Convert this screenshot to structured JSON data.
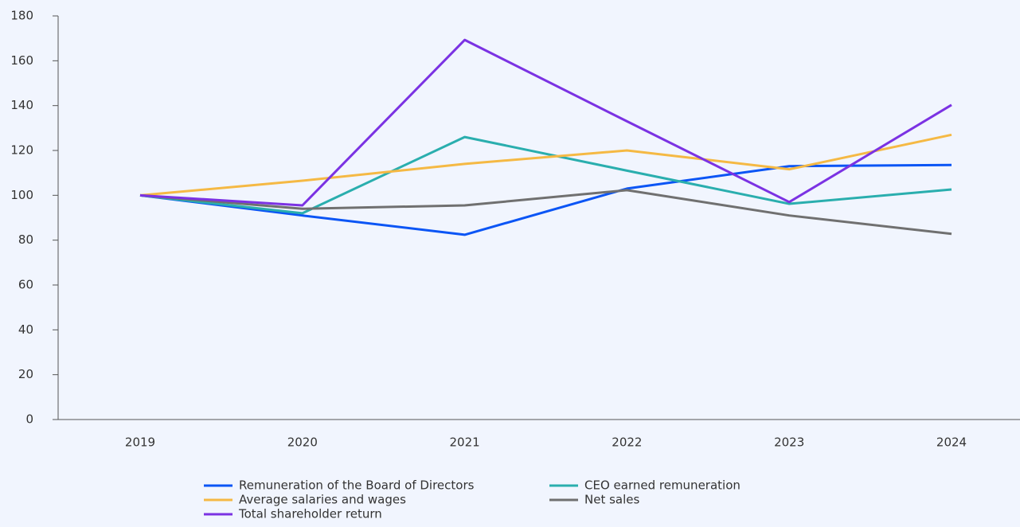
{
  "chart_data": {
    "type": "line",
    "categories": [
      "2019",
      "2020",
      "2021",
      "2022",
      "2023",
      "2024"
    ],
    "series": [
      {
        "name": "Remuneration of the Board of Directors",
        "color": "#0b55f5",
        "values": [
          100,
          91,
          82.4,
          103,
          113,
          113.5
        ]
      },
      {
        "name": "CEO earned remuneration",
        "color": "#2aaeae",
        "values": [
          100,
          92,
          126,
          111,
          96.2,
          102.6
        ]
      },
      {
        "name": "Average salaries and wages",
        "color": "#f5b944",
        "values": [
          100,
          106.5,
          114,
          120,
          111.6,
          127
        ]
      },
      {
        "name": "Net sales",
        "color": "#707070",
        "values": [
          100,
          94,
          95.5,
          102.3,
          91,
          82.8
        ]
      },
      {
        "name": "Total shareholder return",
        "color": "#7b32e3",
        "values": [
          100,
          95.5,
          169.3,
          133,
          97,
          140.3
        ]
      }
    ],
    "ylim": [
      0,
      180
    ],
    "yticks": [
      0,
      20,
      40,
      60,
      80,
      100,
      120,
      140,
      160,
      180
    ]
  }
}
